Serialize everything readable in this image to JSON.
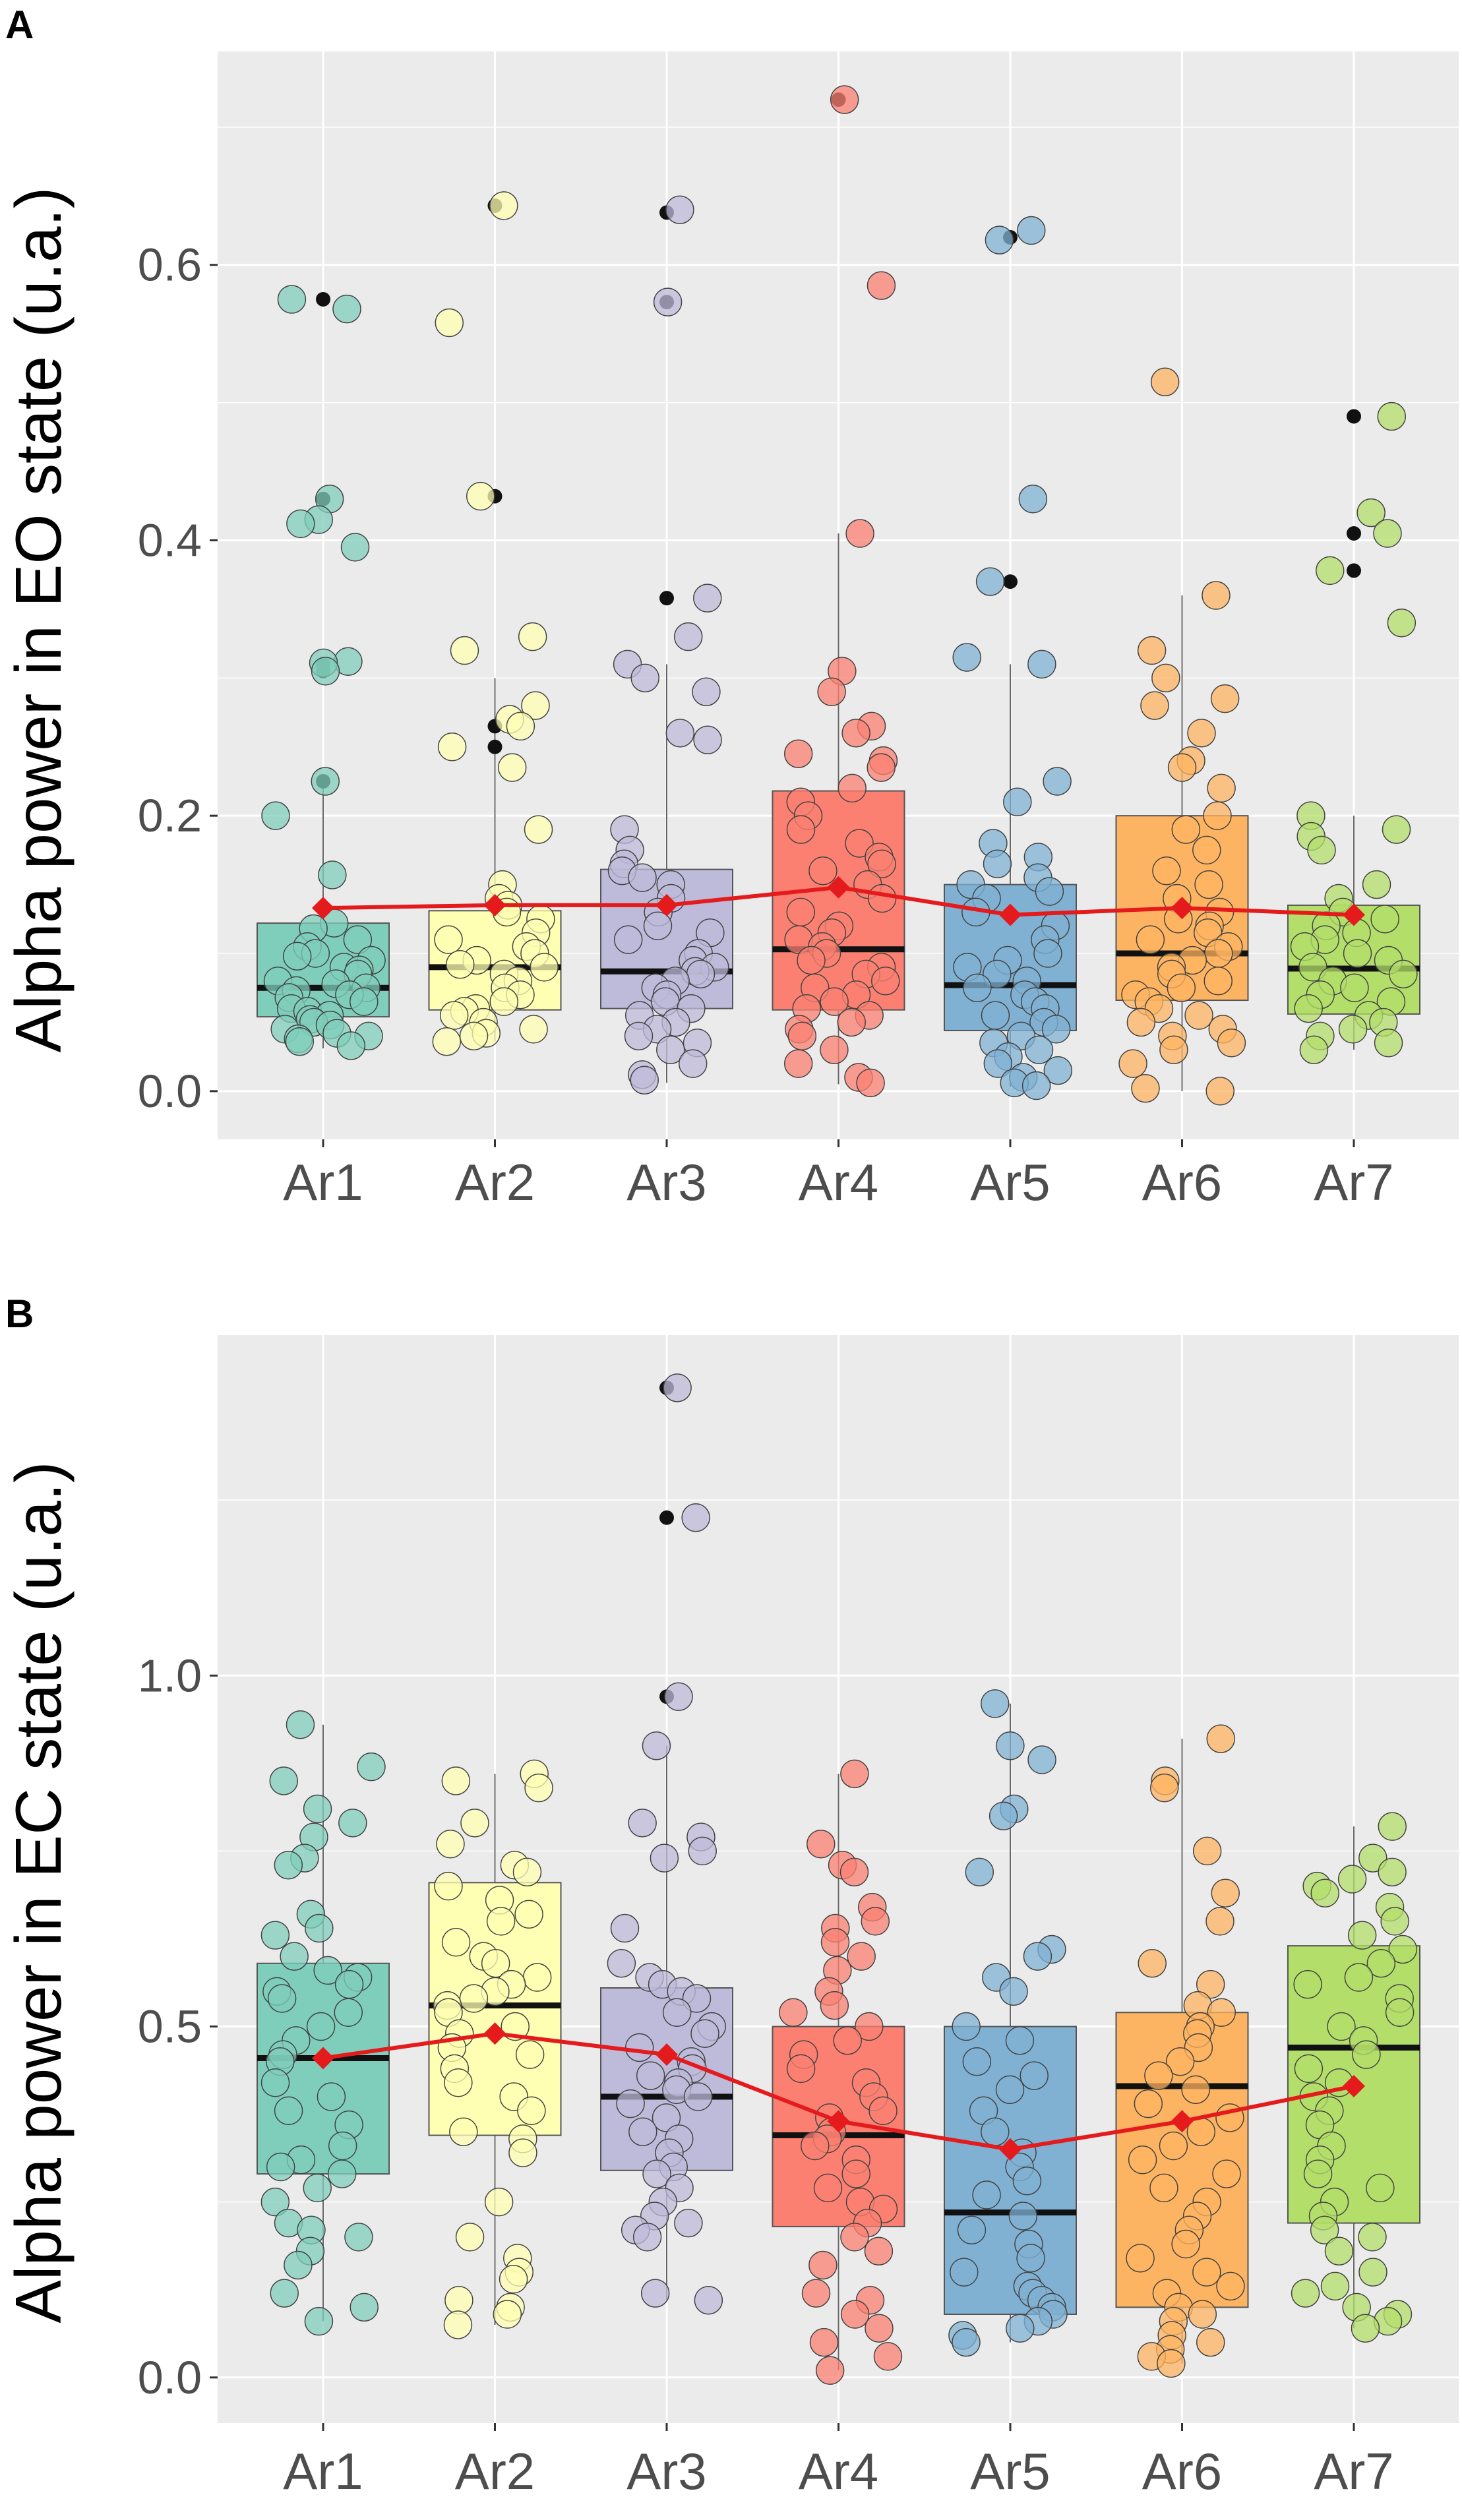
{
  "chart_data": [
    {
      "panel_label": "A",
      "type": "boxplot",
      "title": "",
      "ylabel": "Alpha power in EO state (u.a.)",
      "xlabel": "",
      "ylim": [
        -0.035,
        0.755
      ],
      "yticks": [
        0.0,
        0.2,
        0.4,
        0.6
      ],
      "ytick_labels": [
        "0.0",
        "0.2",
        "0.4",
        "0.6"
      ],
      "categories": [
        "Ar1",
        "Ar2",
        "Ar3",
        "Ar4",
        "Ar5",
        "Ar6",
        "Ar7"
      ],
      "colors": [
        "#7fcdbb",
        "#ffffb3",
        "#bebada",
        "#fb8072",
        "#80b1d3",
        "#fdb462",
        "#b3de69"
      ],
      "boxes": [
        {
          "q1": 0.054,
          "median": 0.075,
          "q3": 0.122,
          "whisker_low": 0.031,
          "whisker_high": 0.22
        },
        {
          "q1": 0.059,
          "median": 0.09,
          "q3": 0.131,
          "whisker_low": 0.036,
          "whisker_high": 0.3
        },
        {
          "q1": 0.06,
          "median": 0.087,
          "q3": 0.161,
          "whisker_low": 0.006,
          "whisker_high": 0.31
        },
        {
          "q1": 0.059,
          "median": 0.103,
          "q3": 0.218,
          "whisker_low": 0.005,
          "whisker_high": 0.405
        },
        {
          "q1": 0.044,
          "median": 0.077,
          "q3": 0.15,
          "whisker_low": 0.003,
          "whisker_high": 0.31
        },
        {
          "q1": 0.066,
          "median": 0.1,
          "q3": 0.2,
          "whisker_low": 0.0,
          "whisker_high": 0.36
        },
        {
          "q1": 0.056,
          "median": 0.089,
          "q3": 0.135,
          "whisker_low": 0.03,
          "whisker_high": 0.2
        }
      ],
      "means": [
        0.133,
        0.135,
        0.135,
        0.148,
        0.128,
        0.133,
        0.128
      ],
      "outliers": [
        [
          0.575,
          0.43,
          0.31,
          0.305,
          0.225
        ],
        [
          0.643,
          0.432,
          0.265,
          0.25
        ],
        [
          0.638,
          0.573,
          0.358
        ],
        [
          0.72
        ],
        [
          0.62,
          0.37
        ],
        [],
        [
          0.49,
          0.405,
          0.378
        ]
      ],
      "points": [
        [
          0.575,
          0.568,
          0.43,
          0.415,
          0.412,
          0.395,
          0.312,
          0.311,
          0.305,
          0.225,
          0.2,
          0.157,
          0.122,
          0.118,
          0.11,
          0.105,
          0.1,
          0.098,
          0.095,
          0.09,
          0.088,
          0.085,
          0.08,
          0.078,
          0.075,
          0.073,
          0.07,
          0.068,
          0.065,
          0.06,
          0.058,
          0.055,
          0.052,
          0.05,
          0.048,
          0.045,
          0.042,
          0.04,
          0.038,
          0.036,
          0.033
        ],
        [
          0.643,
          0.558,
          0.432,
          0.33,
          0.32,
          0.28,
          0.27,
          0.265,
          0.25,
          0.235,
          0.19,
          0.15,
          0.14,
          0.135,
          0.13,
          0.125,
          0.115,
          0.11,
          0.105,
          0.1,
          0.095,
          0.092,
          0.09,
          0.085,
          0.08,
          0.075,
          0.07,
          0.065,
          0.06,
          0.058,
          0.055,
          0.05,
          0.045,
          0.042,
          0.04,
          0.036
        ],
        [
          0.64,
          0.573,
          0.358,
          0.33,
          0.31,
          0.3,
          0.29,
          0.26,
          0.255,
          0.19,
          0.175,
          0.165,
          0.16,
          0.155,
          0.15,
          0.14,
          0.13,
          0.12,
          0.115,
          0.11,
          0.1,
          0.095,
          0.09,
          0.087,
          0.085,
          0.08,
          0.075,
          0.07,
          0.065,
          0.06,
          0.055,
          0.05,
          0.045,
          0.04,
          0.035,
          0.03,
          0.02,
          0.012,
          0.008
        ],
        [
          0.72,
          0.585,
          0.405,
          0.305,
          0.29,
          0.265,
          0.26,
          0.245,
          0.24,
          0.235,
          0.22,
          0.21,
          0.2,
          0.19,
          0.18,
          0.17,
          0.165,
          0.16,
          0.15,
          0.14,
          0.13,
          0.12,
          0.115,
          0.11,
          0.105,
          0.1,
          0.095,
          0.09,
          0.085,
          0.08,
          0.075,
          0.07,
          0.065,
          0.06,
          0.055,
          0.05,
          0.045,
          0.04,
          0.03,
          0.02,
          0.01,
          0.006
        ],
        [
          0.625,
          0.618,
          0.43,
          0.37,
          0.315,
          0.31,
          0.225,
          0.21,
          0.18,
          0.17,
          0.165,
          0.155,
          0.15,
          0.145,
          0.14,
          0.13,
          0.12,
          0.11,
          0.1,
          0.095,
          0.09,
          0.085,
          0.08,
          0.075,
          0.07,
          0.065,
          0.06,
          0.055,
          0.05,
          0.045,
          0.04,
          0.035,
          0.03,
          0.025,
          0.02,
          0.015,
          0.01,
          0.006,
          0.004
        ],
        [
          0.515,
          0.36,
          0.32,
          0.3,
          0.285,
          0.28,
          0.26,
          0.24,
          0.235,
          0.22,
          0.2,
          0.19,
          0.175,
          0.16,
          0.15,
          0.14,
          0.13,
          0.125,
          0.12,
          0.115,
          0.11,
          0.105,
          0.1,
          0.095,
          0.09,
          0.085,
          0.08,
          0.075,
          0.07,
          0.065,
          0.06,
          0.055,
          0.05,
          0.045,
          0.04,
          0.035,
          0.03,
          0.02,
          0.002,
          0.0
        ],
        [
          0.49,
          0.42,
          0.405,
          0.378,
          0.34,
          0.2,
          0.19,
          0.185,
          0.175,
          0.15,
          0.14,
          0.13,
          0.125,
          0.12,
          0.115,
          0.11,
          0.105,
          0.1,
          0.095,
          0.09,
          0.085,
          0.08,
          0.075,
          0.07,
          0.065,
          0.06,
          0.055,
          0.05,
          0.045,
          0.04,
          0.035,
          0.03
        ]
      ]
    },
    {
      "panel_label": "B",
      "type": "boxplot",
      "title": "",
      "ylabel": "Alpha power in EC state (u.a.)",
      "xlabel": "",
      "ylim": [
        -0.065,
        1.485
      ],
      "yticks": [
        0.0,
        0.5,
        1.0
      ],
      "ytick_labels": [
        "0.0",
        "0.5",
        "1.0"
      ],
      "categories": [
        "Ar1",
        "Ar2",
        "Ar3",
        "Ar4",
        "Ar5",
        "Ar6",
        "Ar7"
      ],
      "colors": [
        "#7fcdbb",
        "#ffffb3",
        "#bebada",
        "#fb8072",
        "#80b1d3",
        "#fdb462",
        "#b3de69"
      ],
      "boxes": [
        {
          "q1": 0.29,
          "median": 0.455,
          "q3": 0.59,
          "whisker_low": 0.08,
          "whisker_high": 0.93
        },
        {
          "q1": 0.345,
          "median": 0.53,
          "q3": 0.705,
          "whisker_low": 0.075,
          "whisker_high": 0.86
        },
        {
          "q1": 0.295,
          "median": 0.4,
          "q3": 0.555,
          "whisker_low": 0.11,
          "whisker_high": 0.9
        },
        {
          "q1": 0.215,
          "median": 0.345,
          "q3": 0.5,
          "whisker_low": 0.01,
          "whisker_high": 0.86
        },
        {
          "q1": 0.09,
          "median": 0.235,
          "q3": 0.5,
          "whisker_low": 0.05,
          "whisker_high": 0.96
        },
        {
          "q1": 0.1,
          "median": 0.415,
          "q3": 0.52,
          "whisker_low": 0.02,
          "whisker_high": 0.91
        },
        {
          "q1": 0.22,
          "median": 0.47,
          "q3": 0.615,
          "whisker_low": 0.07,
          "whisker_high": 0.785
        }
      ],
      "means": [
        0.455,
        0.49,
        0.46,
        0.365,
        0.325,
        0.365,
        0.415
      ],
      "outliers": [
        [],
        [],
        [
          1.41,
          1.225,
          0.97
        ],
        [],
        [],
        [],
        []
      ],
      "points": [
        [
          0.93,
          0.87,
          0.85,
          0.81,
          0.79,
          0.77,
          0.74,
          0.73,
          0.66,
          0.64,
          0.63,
          0.6,
          0.58,
          0.57,
          0.56,
          0.55,
          0.54,
          0.52,
          0.5,
          0.48,
          0.46,
          0.45,
          0.42,
          0.4,
          0.38,
          0.36,
          0.33,
          0.31,
          0.3,
          0.29,
          0.27,
          0.25,
          0.22,
          0.21,
          0.2,
          0.18,
          0.16,
          0.12,
          0.1,
          0.08
        ],
        [
          0.86,
          0.85,
          0.84,
          0.79,
          0.76,
          0.73,
          0.72,
          0.7,
          0.68,
          0.66,
          0.65,
          0.62,
          0.6,
          0.59,
          0.57,
          0.56,
          0.55,
          0.54,
          0.53,
          0.52,
          0.5,
          0.49,
          0.47,
          0.46,
          0.44,
          0.42,
          0.4,
          0.38,
          0.35,
          0.34,
          0.32,
          0.25,
          0.2,
          0.17,
          0.15,
          0.14,
          0.11,
          0.1,
          0.09,
          0.075
        ],
        [
          1.41,
          1.225,
          0.97,
          0.9,
          0.79,
          0.77,
          0.75,
          0.74,
          0.64,
          0.59,
          0.57,
          0.56,
          0.55,
          0.54,
          0.52,
          0.5,
          0.49,
          0.47,
          0.45,
          0.44,
          0.43,
          0.42,
          0.41,
          0.4,
          0.39,
          0.37,
          0.35,
          0.34,
          0.32,
          0.3,
          0.29,
          0.27,
          0.25,
          0.23,
          0.22,
          0.21,
          0.2,
          0.12,
          0.11
        ],
        [
          0.86,
          0.76,
          0.73,
          0.72,
          0.67,
          0.65,
          0.64,
          0.62,
          0.6,
          0.58,
          0.55,
          0.53,
          0.52,
          0.5,
          0.48,
          0.46,
          0.44,
          0.42,
          0.4,
          0.38,
          0.37,
          0.35,
          0.34,
          0.33,
          0.31,
          0.29,
          0.27,
          0.25,
          0.24,
          0.22,
          0.2,
          0.18,
          0.16,
          0.12,
          0.11,
          0.09,
          0.07,
          0.05,
          0.03,
          0.01
        ],
        [
          0.96,
          0.9,
          0.88,
          0.81,
          0.8,
          0.72,
          0.61,
          0.6,
          0.57,
          0.55,
          0.5,
          0.48,
          0.45,
          0.43,
          0.41,
          0.38,
          0.35,
          0.32,
          0.3,
          0.28,
          0.26,
          0.23,
          0.21,
          0.19,
          0.17,
          0.15,
          0.13,
          0.12,
          0.11,
          0.1,
          0.09,
          0.08,
          0.07,
          0.06,
          0.05
        ],
        [
          0.91,
          0.85,
          0.84,
          0.75,
          0.69,
          0.65,
          0.59,
          0.56,
          0.53,
          0.52,
          0.5,
          0.49,
          0.47,
          0.45,
          0.43,
          0.41,
          0.39,
          0.37,
          0.35,
          0.33,
          0.31,
          0.29,
          0.27,
          0.25,
          0.23,
          0.21,
          0.19,
          0.17,
          0.15,
          0.13,
          0.12,
          0.1,
          0.09,
          0.08,
          0.06,
          0.05,
          0.04,
          0.03,
          0.02
        ],
        [
          0.785,
          0.74,
          0.72,
          0.71,
          0.7,
          0.69,
          0.67,
          0.65,
          0.63,
          0.61,
          0.59,
          0.57,
          0.56,
          0.54,
          0.52,
          0.5,
          0.48,
          0.46,
          0.44,
          0.42,
          0.4,
          0.38,
          0.36,
          0.33,
          0.31,
          0.29,
          0.27,
          0.25,
          0.23,
          0.21,
          0.2,
          0.18,
          0.15,
          0.13,
          0.12,
          0.1,
          0.09,
          0.08,
          0.07
        ]
      ]
    }
  ]
}
